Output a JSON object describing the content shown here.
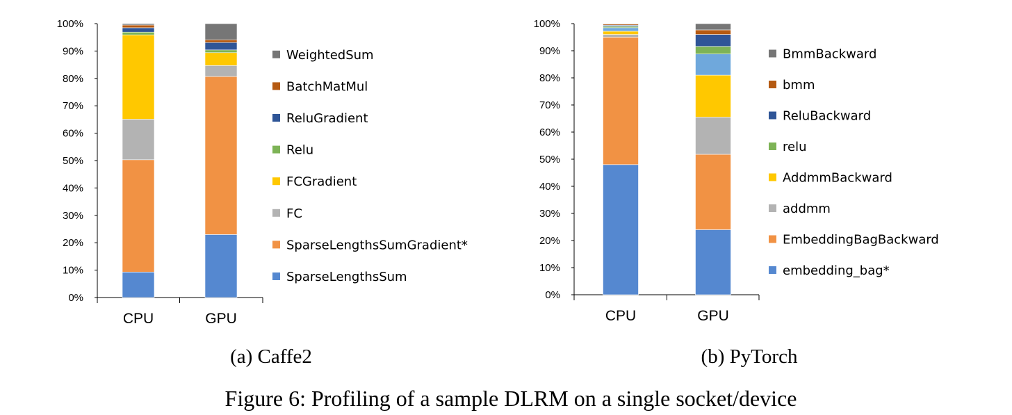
{
  "figure_caption": "Figure 6: Profiling of a sample DLRM on a single socket/device",
  "chart_data": [
    {
      "type": "bar",
      "stacked": true,
      "caption": "(a) Caffe2",
      "categories": [
        "CPU",
        "GPU"
      ],
      "ylim": [
        0,
        100
      ],
      "y_ticks": [
        "0%",
        "10%",
        "20%",
        "30%",
        "40%",
        "50%",
        "60%",
        "70%",
        "80%",
        "90%",
        "100%"
      ],
      "legend_position": "right",
      "series": [
        {
          "name": "SparseLengthsSum",
          "color": "#5588D0",
          "values": [
            9.3,
            23.0
          ]
        },
        {
          "name": "SparseLengthsSumGradient*",
          "color": "#F19244",
          "values": [
            41.0,
            57.7
          ]
        },
        {
          "name": "FC",
          "color": "#B3B3B3",
          "values": [
            14.8,
            4.0
          ]
        },
        {
          "name": "FCGradient",
          "color": "#FFC800",
          "values": [
            30.8,
            4.7
          ]
        },
        {
          "name": "Relu",
          "color": "#7DB356",
          "values": [
            1.0,
            1.0
          ]
        },
        {
          "name": "ReluGradient",
          "color": "#2F5597",
          "values": [
            1.6,
            2.7
          ]
        },
        {
          "name": "BatchMatMul",
          "color": "#B55A12",
          "values": [
            1.0,
            1.0
          ]
        },
        {
          "name": "WeightedSum",
          "color": "#767676",
          "values": [
            0.5,
            5.9
          ]
        }
      ]
    },
    {
      "type": "bar",
      "stacked": true,
      "caption": "(b) PyTorch",
      "categories": [
        "CPU",
        "GPU"
      ],
      "ylim": [
        0,
        100
      ],
      "y_ticks": [
        "0%",
        "10%",
        "20%",
        "30%",
        "40%",
        "50%",
        "60%",
        "70%",
        "80%",
        "90%",
        "100%"
      ],
      "legend_position": "right",
      "series": [
        {
          "name": "embedding_bag*",
          "color": "#5588D0",
          "values": [
            48.0,
            24.0
          ]
        },
        {
          "name": "EmbeddingBagBackward",
          "color": "#F19244",
          "values": [
            47.0,
            27.8
          ]
        },
        {
          "name": "addmm",
          "color": "#B3B3B3",
          "values": [
            1.0,
            13.7
          ]
        },
        {
          "name": "AddmmBackward",
          "color": "#FFC800",
          "values": [
            1.2,
            15.5
          ]
        },
        {
          "name": "",
          "color": "#6FA8DC",
          "values": [
            1.3,
            7.8
          ]
        },
        {
          "name": "relu",
          "color": "#7DB356",
          "values": [
            0.5,
            2.8
          ]
        },
        {
          "name": "ReluBackward",
          "color": "#2F5597",
          "values": [
            0.4,
            4.4
          ]
        },
        {
          "name": "bmm",
          "color": "#B55A12",
          "values": [
            0.4,
            1.7
          ]
        },
        {
          "name": "BmmBackward",
          "color": "#767676",
          "values": [
            0.2,
            2.3
          ]
        }
      ]
    }
  ]
}
